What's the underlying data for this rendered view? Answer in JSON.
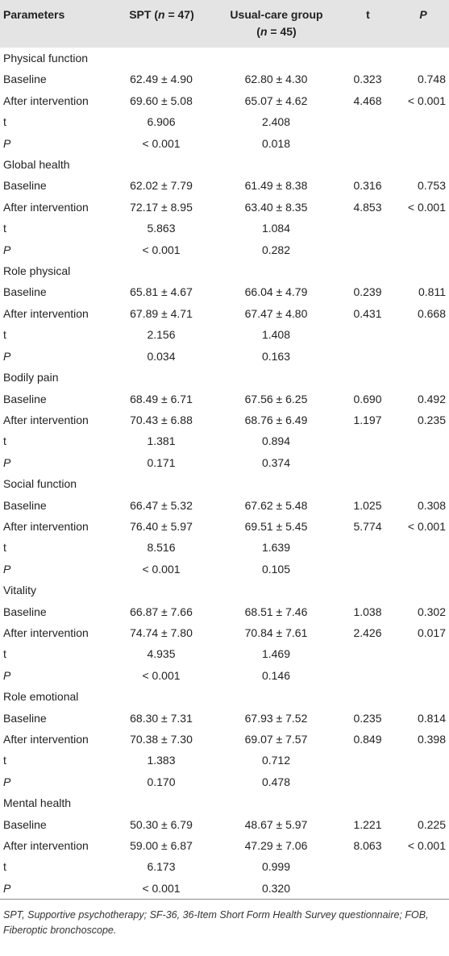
{
  "table": {
    "headers": {
      "parameters": "Parameters",
      "spt": "SPT (n = 47)",
      "usual": "Usual-care group (n = 45)",
      "t": "t",
      "p": "P"
    },
    "groups": [
      {
        "name": "Physical function",
        "rows": [
          {
            "label": "Baseline",
            "spt": "62.49 ± 4.90",
            "usual": "62.80 ± 4.30",
            "t": "0.323",
            "p": "0.748"
          },
          {
            "label": "After intervention",
            "spt": "69.60 ± 5.08",
            "usual": "65.07 ± 4.62",
            "t": "4.468",
            "p": "< 0.001"
          },
          {
            "label": "t",
            "spt": "6.906",
            "usual": "2.408",
            "t": "",
            "p": ""
          },
          {
            "label": "P",
            "spt": "< 0.001",
            "usual": "0.018",
            "t": "",
            "p": ""
          }
        ]
      },
      {
        "name": "Global health",
        "rows": [
          {
            "label": "Baseline",
            "spt": "62.02 ± 7.79",
            "usual": "61.49 ± 8.38",
            "t": "0.316",
            "p": "0.753"
          },
          {
            "label": "After intervention",
            "spt": "72.17 ± 8.95",
            "usual": "63.40 ± 8.35",
            "t": "4.853",
            "p": "< 0.001"
          },
          {
            "label": "t",
            "spt": "5.863",
            "usual": "1.084",
            "t": "",
            "p": ""
          },
          {
            "label": "P",
            "spt": "< 0.001",
            "usual": "0.282",
            "t": "",
            "p": ""
          }
        ]
      },
      {
        "name": "Role physical",
        "rows": [
          {
            "label": "Baseline",
            "spt": "65.81 ± 4.67",
            "usual": "66.04 ± 4.79",
            "t": "0.239",
            "p": "0.811"
          },
          {
            "label": "After intervention",
            "spt": "67.89 ± 4.71",
            "usual": "67.47 ± 4.80",
            "t": "0.431",
            "p": "0.668"
          },
          {
            "label": "t",
            "spt": "2.156",
            "usual": "1.408",
            "t": "",
            "p": ""
          },
          {
            "label": "P",
            "spt": "0.034",
            "usual": "0.163",
            "t": "",
            "p": ""
          }
        ]
      },
      {
        "name": "Bodily pain",
        "rows": [
          {
            "label": "Baseline",
            "spt": "68.49 ± 6.71",
            "usual": "67.56 ± 6.25",
            "t": "0.690",
            "p": "0.492"
          },
          {
            "label": "After intervention",
            "spt": "70.43 ± 6.88",
            "usual": "68.76 ± 6.49",
            "t": "1.197",
            "p": "0.235"
          },
          {
            "label": "t",
            "spt": "1.381",
            "usual": "0.894",
            "t": "",
            "p": ""
          },
          {
            "label": "P",
            "spt": "0.171",
            "usual": "0.374",
            "t": "",
            "p": ""
          }
        ]
      },
      {
        "name": "Social function",
        "rows": [
          {
            "label": "Baseline",
            "spt": "66.47 ± 5.32",
            "usual": "67.62 ± 5.48",
            "t": "1.025",
            "p": "0.308"
          },
          {
            "label": "After intervention",
            "spt": "76.40 ± 5.97",
            "usual": "69.51 ± 5.45",
            "t": "5.774",
            "p": "< 0.001"
          },
          {
            "label": "t",
            "spt": "8.516",
            "usual": "1.639",
            "t": "",
            "p": ""
          },
          {
            "label": "P",
            "spt": "< 0.001",
            "usual": "0.105",
            "t": "",
            "p": ""
          }
        ]
      },
      {
        "name": "Vitality",
        "rows": [
          {
            "label": "Baseline",
            "spt": "66.87 ± 7.66",
            "usual": "68.51 ± 7.46",
            "t": "1.038",
            "p": "0.302"
          },
          {
            "label": "After intervention",
            "spt": "74.74 ± 7.80",
            "usual": "70.84 ± 7.61",
            "t": "2.426",
            "p": "0.017"
          },
          {
            "label": "t",
            "spt": "4.935",
            "usual": "1.469",
            "t": "",
            "p": ""
          },
          {
            "label": "P",
            "spt": "< 0.001",
            "usual": "0.146",
            "t": "",
            "p": ""
          }
        ]
      },
      {
        "name": "Role emotional",
        "rows": [
          {
            "label": "Baseline",
            "spt": "68.30 ± 7.31",
            "usual": "67.93 ± 7.52",
            "t": "0.235",
            "p": "0.814"
          },
          {
            "label": "After intervention",
            "spt": "70.38 ± 7.30",
            "usual": "69.07 ± 7.57",
            "t": "0.849",
            "p": "0.398"
          },
          {
            "label": "t",
            "spt": "1.383",
            "usual": "0.712",
            "t": "",
            "p": ""
          },
          {
            "label": "P",
            "spt": "0.170",
            "usual": "0.478",
            "t": "",
            "p": ""
          }
        ]
      },
      {
        "name": "Mental health",
        "rows": [
          {
            "label": "Baseline",
            "spt": "50.30 ± 6.79",
            "usual": "48.67 ± 5.97",
            "t": "1.221",
            "p": "0.225"
          },
          {
            "label": "After intervention",
            "spt": "59.00 ± 6.87",
            "usual": "47.29 ± 7.06",
            "t": "8.063",
            "p": "< 0.001"
          },
          {
            "label": "t",
            "spt": "6.173",
            "usual": "0.999",
            "t": "",
            "p": ""
          },
          {
            "label": "P",
            "spt": "< 0.001",
            "usual": "0.320",
            "t": "",
            "p": ""
          }
        ]
      }
    ]
  },
  "footnote": "SPT, Supportive psychotherapy; SF-36, 36-Item Short Form Health Survey questionnaire; FOB, Fiberoptic bronchoscope.",
  "colors": {
    "header_bg": "#e4e4e4",
    "row_shade": "#e4e4e4",
    "text": "#222222"
  }
}
